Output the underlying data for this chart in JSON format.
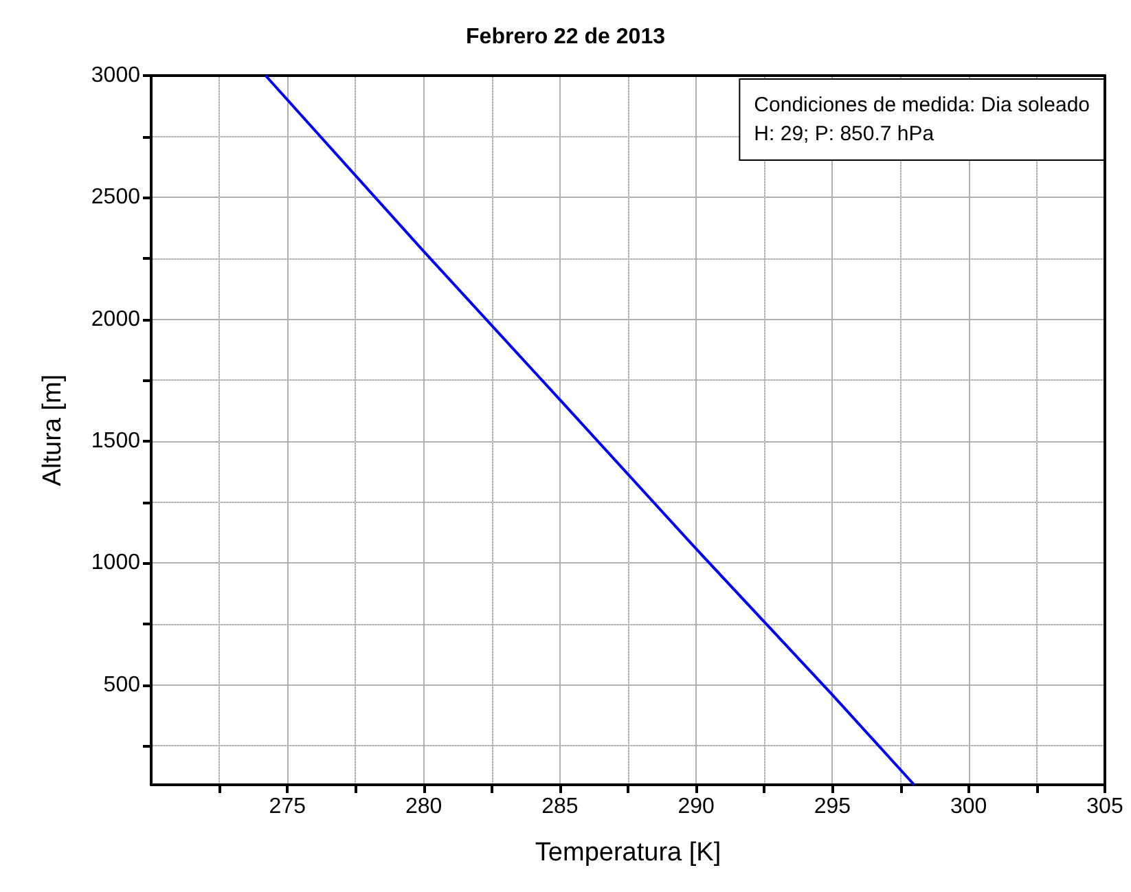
{
  "chart_data": {
    "type": "line",
    "title": "Febrero 22 de 2013",
    "xlabel": "Temperatura [K]",
    "ylabel": "Altura [m]",
    "annotations": [
      "Condiciones de medida: Dia soleado",
      "H: 29; P: 850.7 hPa"
    ],
    "series": [
      {
        "color": "#0000ff",
        "x": [
          298,
          295,
          290,
          285,
          280,
          274.2
        ],
        "values": [
          90,
          459,
          1058,
          1670,
          2279,
          3000
        ]
      }
    ],
    "xlim": [
      270,
      305
    ],
    "xticks": [
      {
        "value": 272.5,
        "label": null
      },
      275,
      {
        "value": 277.5,
        "label": null
      },
      280,
      {
        "value": 282.5,
        "label": null
      },
      285,
      {
        "value": 287.5,
        "label": null
      },
      290,
      {
        "value": 292.5,
        "label": null
      },
      295,
      {
        "value": 297.5,
        "label": null
      },
      300,
      {
        "value": 302.5,
        "label": null
      },
      305
    ],
    "ylim": [
      90,
      3000
    ],
    "yticks": [
      {
        "value": 250,
        "label": null
      },
      500,
      {
        "value": 750,
        "label": null
      },
      1000,
      {
        "value": 1250,
        "label": null
      },
      1500,
      {
        "value": 1750,
        "label": null
      },
      2000,
      {
        "value": 2250,
        "label": null
      },
      2500,
      {
        "value": 2750,
        "label": null
      },
      3000
    ],
    "grid": true,
    "marker": "none",
    "line_style": "solid"
  }
}
